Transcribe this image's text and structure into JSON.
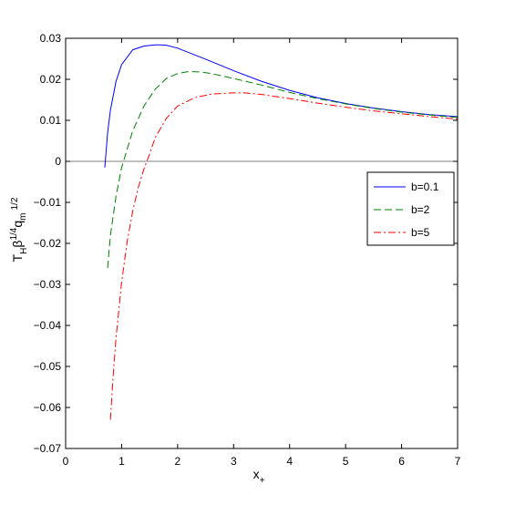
{
  "chart_data": {
    "type": "line",
    "title": "",
    "xlabel": "x",
    "xlabel_sub": "+",
    "ylabel": {
      "T": "T",
      "T_sub": "H",
      "beta": "β",
      "beta_sup": "1/4",
      "q": "q",
      "q_sub": "m",
      "q_sup": "1/2"
    },
    "xlim": [
      0,
      7
    ],
    "ylim": [
      -0.07,
      0.03
    ],
    "xticks": [
      0,
      1,
      2,
      3,
      4,
      5,
      6,
      7
    ],
    "yticks": [
      -0.07,
      -0.06,
      -0.05,
      -0.04,
      -0.03,
      -0.02,
      -0.01,
      0,
      0.01,
      0.02,
      0.03
    ],
    "xtick_labels": [
      "0",
      "1",
      "2",
      "3",
      "4",
      "5",
      "6",
      "7"
    ],
    "ytick_labels": [
      "−0.07",
      "−0.06",
      "−0.05",
      "−0.04",
      "−0.03",
      "−0.02",
      "−0.01",
      "0",
      "0.01",
      "0.02",
      "0.03"
    ],
    "grid": false,
    "legend_position": "right",
    "reference_line": {
      "y": 0,
      "color": "#808080"
    },
    "series": [
      {
        "name": "b=0.1",
        "color": "#0000ff",
        "style": "solid",
        "x": [
          0.7,
          0.75,
          0.8,
          0.9,
          1.0,
          1.2,
          1.4,
          1.6,
          1.7,
          1.8,
          2.0,
          2.5,
          3.0,
          3.5,
          4.0,
          4.5,
          5.0,
          5.5,
          6.0,
          6.5,
          7.0
        ],
        "y": [
          -0.0015,
          0.007,
          0.0125,
          0.0195,
          0.0236,
          0.0272,
          0.0281,
          0.0284,
          0.0284,
          0.0283,
          0.0276,
          0.0249,
          0.0221,
          0.0195,
          0.0173,
          0.0155,
          0.0141,
          0.013,
          0.0121,
          0.0114,
          0.0109
        ]
      },
      {
        "name": "b=2",
        "color": "#008000",
        "style": "dashed",
        "x": [
          0.75,
          0.8,
          0.9,
          1.0,
          1.2,
          1.4,
          1.6,
          1.8,
          2.0,
          2.2,
          2.4,
          2.6,
          3.0,
          3.5,
          4.0,
          4.5,
          5.0,
          5.5,
          6.0,
          6.5,
          7.0
        ],
        "y": [
          -0.026,
          -0.018,
          -0.0085,
          -0.0015,
          0.0075,
          0.0135,
          0.0176,
          0.0202,
          0.0214,
          0.0219,
          0.0218,
          0.0214,
          0.0202,
          0.0186,
          0.0168,
          0.0153,
          0.014,
          0.0129,
          0.012,
          0.0113,
          0.0107
        ]
      },
      {
        "name": "b=5",
        "color": "#ff0000",
        "style": "dashdot",
        "x": [
          0.8,
          0.85,
          0.9,
          1.0,
          1.1,
          1.2,
          1.3,
          1.4,
          1.5,
          1.6,
          1.8,
          2.0,
          2.3,
          2.6,
          3.0,
          3.2,
          3.5,
          4.0,
          4.5,
          5.0,
          5.5,
          6.0,
          6.5,
          7.0
        ],
        "y": [
          -0.063,
          -0.052,
          -0.043,
          -0.0295,
          -0.0195,
          -0.012,
          -0.0062,
          -0.0018,
          0.0018,
          0.0058,
          0.0105,
          0.0135,
          0.0155,
          0.0164,
          0.0167,
          0.0167,
          0.0163,
          0.0153,
          0.0142,
          0.0132,
          0.0123,
          0.0116,
          0.0109,
          0.0103
        ]
      }
    ]
  }
}
